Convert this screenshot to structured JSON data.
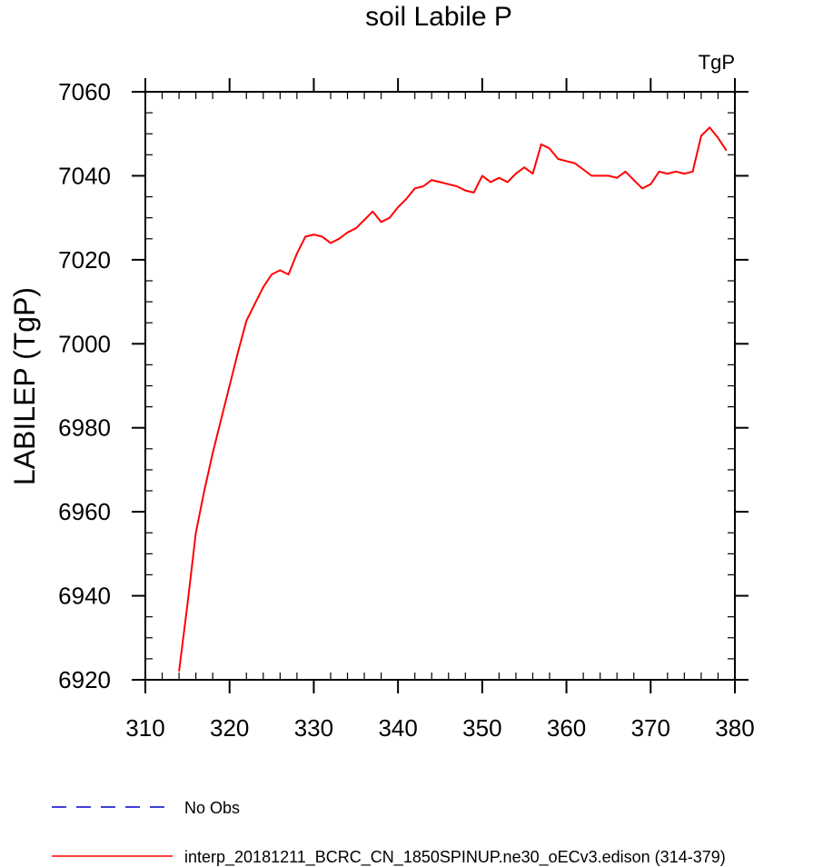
{
  "chart_data": {
    "type": "line",
    "title": "soil Labile P",
    "units_label": "TgP",
    "ylabel": "LABILEP  (TgP)",
    "xlabel": "",
    "xlim": [
      310,
      380
    ],
    "ylim": [
      6920,
      7060
    ],
    "x_ticks": [
      310,
      320,
      330,
      340,
      350,
      360,
      370,
      380
    ],
    "y_ticks": [
      6920,
      6940,
      6960,
      6980,
      7000,
      7020,
      7040,
      7060
    ],
    "grid": false,
    "legend_position": "bottom-left",
    "series": [
      {
        "name": "No Obs",
        "color": "#0000cc",
        "dash": "dashed",
        "x": [],
        "values": []
      },
      {
        "name": "interp_20181211_BCRC_CN_1850SPINUP.ne30_oECv3.edison (314-379)",
        "color": "#ff0000",
        "dash": "solid",
        "x": [
          314,
          315,
          316,
          317,
          318,
          319,
          320,
          321,
          322,
          323,
          324,
          325,
          326,
          327,
          328,
          329,
          330,
          331,
          332,
          333,
          334,
          335,
          336,
          337,
          338,
          339,
          340,
          341,
          342,
          343,
          344,
          345,
          346,
          347,
          348,
          349,
          350,
          351,
          352,
          353,
          354,
          355,
          356,
          357,
          358,
          359,
          360,
          361,
          362,
          363,
          364,
          365,
          366,
          367,
          368,
          369,
          370,
          371,
          372,
          373,
          374,
          375,
          376,
          377,
          378,
          379
        ],
        "values": [
          6922,
          6938,
          6955,
          6965,
          6974,
          6982,
          6990,
          6998,
          7005.5,
          7009.5,
          7013.5,
          7016.5,
          7017.5,
          7016.5,
          7021.5,
          7025.5,
          7026,
          7025.5,
          7024,
          7025,
          7026.5,
          7027.5,
          7029.5,
          7031.5,
          7029,
          7030,
          7032.5,
          7034.5,
          7037,
          7037.5,
          7039,
          7038.5,
          7038,
          7037.5,
          7036.5,
          7036,
          7040,
          7038.5,
          7039.5,
          7038.5,
          7040.5,
          7042,
          7040.5,
          7047.5,
          7046.5,
          7044,
          7043.5,
          7043,
          7041.5,
          7040,
          7040,
          7040,
          7039.5,
          7041,
          7039,
          7037,
          7038,
          7041,
          7040.5,
          7041,
          7040.5,
          7041,
          7049.5,
          7051.5,
          7049,
          7046
        ]
      }
    ]
  }
}
